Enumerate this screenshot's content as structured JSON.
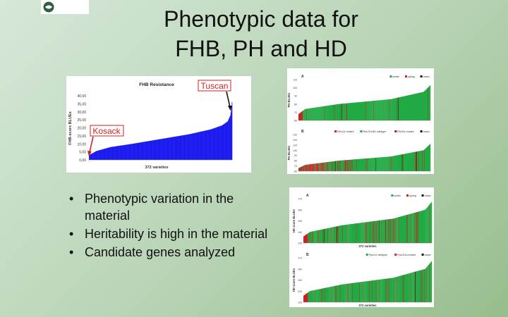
{
  "slide": {
    "title_line1": "Phenotypic data for",
    "title_line2": "FHB, PH and HD",
    "bullets": [
      "Phenotypic variation in the material",
      "Heritability is high in the material",
      "Candidate genes analyzed"
    ]
  },
  "colors": {
    "fhb_bars": "#1c1cf0",
    "winter": "#22aa44",
    "spring": "#cc2222",
    "mean": "#111111",
    "annotation": "#cc2222"
  },
  "chart_data": [
    {
      "type": "area",
      "id": "fhb",
      "title": "FHB Resistance",
      "ylabel": "FHB-score BLUEs",
      "xlabel": "372 varieties",
      "ylim": [
        0,
        40
      ],
      "yticks": [
        "0,00",
        "5,00",
        "10,00",
        "15,00",
        "20,00",
        "25,00",
        "30,00",
        "35,00",
        "40,00"
      ],
      "n": 372,
      "curve_x": [
        0,
        0.05,
        0.15,
        0.3,
        0.5,
        0.7,
        0.85,
        0.93,
        0.97,
        0.99,
        1
      ],
      "curve_y": [
        3,
        5.5,
        8,
        10,
        13,
        16,
        19,
        21.5,
        24,
        28,
        36
      ],
      "annotations": [
        {
          "label": "Tuscan",
          "x": 1.0,
          "y": 36
        },
        {
          "label": "Kosack",
          "x": 0.0,
          "y": 3
        }
      ]
    },
    {
      "type": "bar",
      "id": "ph",
      "panels": [
        {
          "letter": "A",
          "ylabel": "PH BLUEs",
          "legend": [
            "winter",
            "spring",
            "mean"
          ],
          "yticks": [
            "110",
            "100",
            "90",
            "80",
            "70",
            "60"
          ],
          "ylim": [
            60,
            110
          ],
          "curve_x": [
            0,
            0.05,
            0.3,
            0.7,
            0.95,
            1
          ],
          "curve_y": [
            68,
            74,
            80,
            86,
            95,
            103
          ],
          "n": 372
        },
        {
          "letter": "B",
          "ylabel": "PH BLUEs",
          "legend": [
            "Rht-D1 mutant",
            "Rht-D1b/B1 wildtype",
            "Rht-B1 mutant",
            "mean"
          ],
          "yticks": [
            "130",
            "120",
            "110",
            "100",
            "90",
            "80",
            "70",
            "60"
          ],
          "ylim": [
            60,
            130
          ],
          "curve_x": [
            0,
            0.05,
            0.3,
            0.7,
            0.95,
            1
          ],
          "curve_y": [
            66,
            72,
            80,
            88,
            100,
            112
          ],
          "n": 372
        }
      ]
    },
    {
      "type": "bar",
      "id": "hd",
      "panels": [
        {
          "letter": "A",
          "ylabel": "HD score BLUEs",
          "xlabel": "372 varieties",
          "legend": [
            "winter",
            "spring",
            "mean"
          ],
          "yticks": [
            "170",
            "160",
            "150",
            "140",
            "130"
          ],
          "ylim": [
            130,
            170
          ],
          "curve_x": [
            0,
            0.05,
            0.3,
            0.7,
            0.95,
            1
          ],
          "curve_y": [
            136,
            140,
            146,
            152,
            160,
            167
          ],
          "n": 372
        },
        {
          "letter": "B",
          "ylabel": "HD score BLUEs",
          "xlabel": "372 varieties",
          "legend": [
            "Ppd-D1 wildtype",
            "Ppd-D1a mutant",
            "mean"
          ],
          "yticks": [
            "170",
            "160",
            "150",
            "140",
            "130"
          ],
          "ylim": [
            130,
            170
          ],
          "curve_x": [
            0,
            0.05,
            0.3,
            0.7,
            0.95,
            1
          ],
          "curve_y": [
            136,
            140,
            146,
            152,
            160,
            167
          ],
          "n": 372
        }
      ]
    }
  ]
}
